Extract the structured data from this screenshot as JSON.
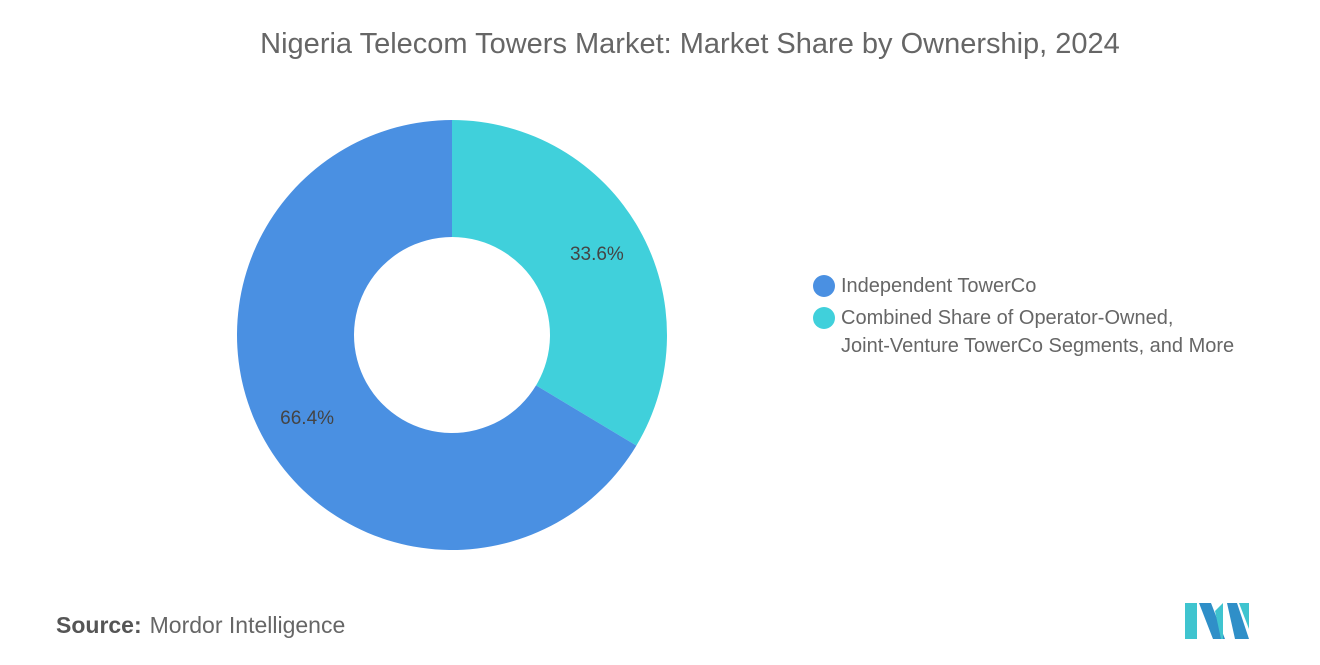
{
  "chart_data": {
    "type": "pie",
    "donut": true,
    "title": "Nigeria Telecom Towers Market: Market Share by Ownership, 2024",
    "slices": [
      {
        "name": "Independent TowerCo",
        "value": 66.4,
        "label": "66.4%",
        "color": "#4a90e2"
      },
      {
        "name": "Combined Share of Operator-Owned, Joint-Venture TowerCo Segments, and More",
        "value": 33.6,
        "label": "33.6%",
        "color": "#40d0db"
      }
    ],
    "legend_position": "right"
  },
  "legend": {
    "items": [
      "Independent TowerCo",
      "Combined Share of Operator-Owned,\nJoint-Venture TowerCo Segments, and More"
    ]
  },
  "source": {
    "label": "Source:",
    "value": "Mordor Intelligence"
  },
  "logo": {
    "text": "Mordor Intelligence",
    "colors": [
      "#2f8fc8",
      "#3fc4cf"
    ]
  }
}
